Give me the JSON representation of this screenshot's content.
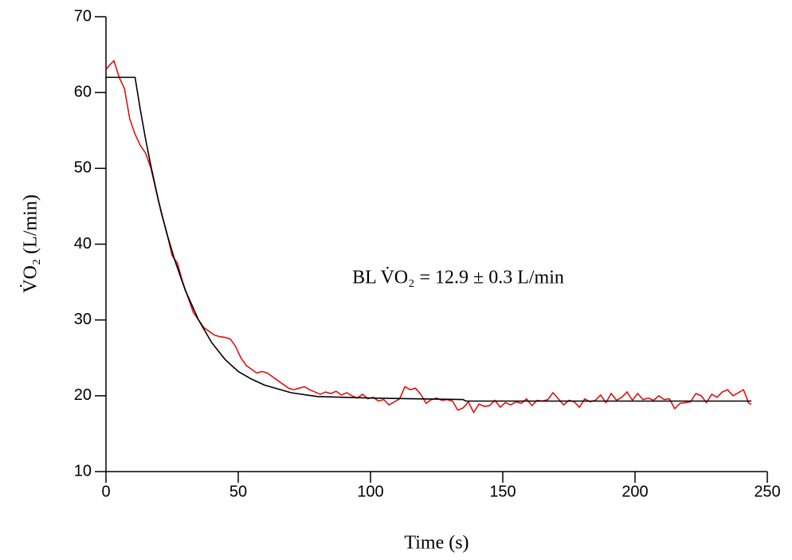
{
  "chart_data": {
    "type": "line",
    "xlabel": "Time (s)",
    "ylabel": "V̇O₂ (L/min)",
    "annotation": "BL V̇O₂ = 12.9 ± 0.3 L/min",
    "xlim": [
      0,
      250
    ],
    "xticks": [
      0,
      50,
      100,
      150,
      200,
      250
    ],
    "ylim": [
      10,
      70
    ],
    "yticks": [
      10,
      20,
      30,
      40,
      50,
      60,
      70
    ],
    "series": [
      {
        "color": "#e01010",
        "x": [
          0,
          1,
          3,
          5,
          7,
          9,
          11,
          13,
          15,
          17,
          19,
          21,
          23,
          25,
          27,
          29,
          31,
          33,
          35,
          37,
          39,
          41,
          43,
          45,
          47,
          49,
          51,
          53,
          55,
          57,
          59,
          61,
          63,
          65,
          67,
          69,
          71,
          73,
          75,
          77,
          79,
          81,
          83,
          85,
          87,
          89,
          91,
          93,
          95,
          97,
          99,
          101,
          103,
          105,
          107,
          109,
          111,
          113,
          115,
          117,
          119,
          121,
          123,
          125,
          127,
          129,
          131,
          133,
          135,
          137,
          139,
          141,
          143,
          145,
          147,
          149,
          151,
          153,
          155,
          157,
          159,
          161,
          163,
          165,
          167,
          169,
          171,
          173,
          175,
          177,
          179,
          181,
          183,
          185,
          187,
          189,
          191,
          193,
          195,
          197,
          199,
          201,
          203,
          205,
          207,
          209,
          211,
          213,
          215,
          217,
          219,
          221,
          223,
          225,
          227,
          229,
          231,
          233,
          235,
          237,
          239,
          241,
          243,
          244
        ],
        "values": [
          63,
          63.5,
          64.2,
          62,
          60.5,
          56.5,
          54.5,
          53,
          52,
          50,
          47,
          44,
          41.5,
          38.5,
          37.5,
          35,
          33,
          31,
          30,
          29,
          28.5,
          28,
          27.8,
          27.7,
          27.5,
          26.5,
          25,
          24,
          23.5,
          23,
          23.2,
          23,
          22.5,
          22,
          21.5,
          21,
          20.8,
          21,
          21.2,
          20.8,
          20.5,
          20.2,
          20.5,
          20.3,
          20.6,
          20.1,
          20.4,
          20,
          19.7,
          20.2,
          19.6,
          19.8,
          19.3,
          19.5,
          18.8,
          19.2,
          19.6,
          21.2,
          20.8,
          21,
          20.2,
          19,
          19.5,
          19.7,
          19.4,
          19.5,
          19.3,
          18.1,
          18.4,
          19.2,
          17.8,
          18.9,
          18.6,
          18.7,
          19.4,
          18.5,
          19.1,
          18.8,
          19.2,
          19.0,
          19.6,
          18.7,
          19.4,
          19.3,
          19.5,
          20.4,
          19.6,
          18.8,
          19.4,
          19.2,
          18.5,
          19.6,
          19.2,
          19.4,
          20.1,
          19.1,
          20.3,
          19.4,
          19.8,
          20.5,
          19.4,
          20.3,
          19.5,
          19.7,
          19.4,
          20.0,
          19.5,
          19.6,
          18.3,
          19.0,
          19.1,
          19.2,
          20.3,
          20.0,
          19.1,
          20.2,
          19.8,
          20.5,
          20.8,
          20.0,
          20.4,
          20.8,
          19.0,
          18.9
        ]
      },
      {
        "color": "#000000",
        "x": [
          0,
          10,
          11,
          13,
          15,
          17,
          20,
          23,
          26,
          30,
          35,
          40,
          45,
          50,
          55,
          60,
          70,
          80,
          100,
          135,
          136,
          244
        ],
        "values": [
          62,
          62,
          62,
          57.7,
          53.8,
          50.3,
          45.5,
          41.4,
          37.9,
          33.9,
          30.0,
          27.0,
          24.8,
          23.2,
          22.2,
          21.4,
          20.4,
          19.9,
          19.7,
          19.5,
          19.3,
          19.3
        ]
      }
    ]
  }
}
